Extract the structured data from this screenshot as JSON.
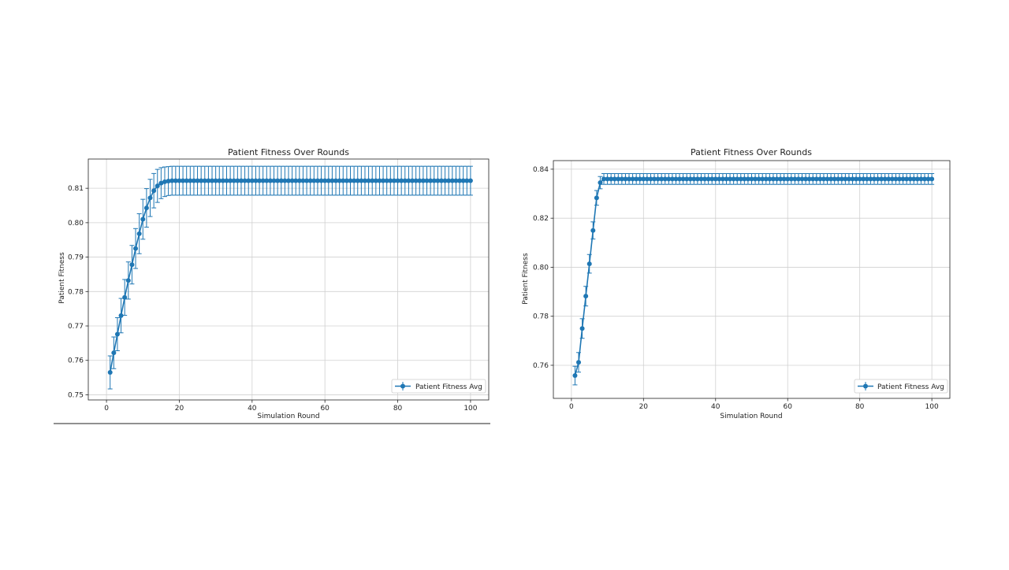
{
  "chart_data": [
    {
      "type": "line",
      "title": "Patient Fitness Over Rounds",
      "xlabel": "Simulation Round",
      "ylabel": "Patient Fitness",
      "xlim": [
        -5,
        105
      ],
      "ylim": [
        0.7485,
        0.8185
      ],
      "xticks": [
        0,
        20,
        40,
        60,
        80,
        100
      ],
      "yticks": [
        0.75,
        0.76,
        0.77,
        0.78,
        0.79,
        0.8,
        0.81
      ],
      "ytick_labels": [
        "0.75",
        "0.76",
        "0.77",
        "0.78",
        "0.79",
        "0.80",
        "0.81"
      ],
      "grid": true,
      "legend": "lower-right",
      "color": "#1f77b4",
      "series": [
        {
          "name": "Patient Fitness Avg",
          "x_start": 1,
          "values": [
            0.7565,
            0.7622,
            0.7676,
            0.773,
            0.7783,
            0.7832,
            0.7878,
            0.7925,
            0.7968,
            0.801,
            0.8043,
            0.8072,
            0.8093,
            0.8107,
            0.8115,
            0.8119,
            0.8121,
            0.8122
          ],
          "errors": [
            0.0048,
            0.0046,
            0.0048,
            0.005,
            0.0052,
            0.0054,
            0.0056,
            0.0058,
            0.0058,
            0.0058,
            0.0056,
            0.0054,
            0.005,
            0.0048,
            0.0045,
            0.0043,
            0.0042,
            0.0042
          ],
          "plateau_value": 0.8122,
          "plateau_error": 0.0042,
          "n_points": 100
        }
      ]
    },
    {
      "type": "line",
      "title": "Patient Fitness Over Rounds",
      "xlabel": "Simulation Round",
      "ylabel": "Patient Fitness",
      "xlim": [
        -5,
        105
      ],
      "ylim": [
        0.7465,
        0.8435
      ],
      "xticks": [
        0,
        20,
        40,
        60,
        80,
        100
      ],
      "yticks": [
        0.76,
        0.78,
        0.8,
        0.82,
        0.84
      ],
      "ytick_labels": [
        "0.76",
        "0.78",
        "0.80",
        "0.82",
        "0.84"
      ],
      "grid": true,
      "legend": "lower-right",
      "color": "#1f77b4",
      "series": [
        {
          "name": "Patient Fitness Avg",
          "x_start": 1,
          "values": [
            0.7558,
            0.7612,
            0.775,
            0.7882,
            0.8014,
            0.815,
            0.8283,
            0.8345,
            0.836
          ],
          "errors": [
            0.0038,
            0.004,
            0.004,
            0.004,
            0.0038,
            0.0035,
            0.003,
            0.0025,
            0.0022
          ],
          "plateau_value": 0.836,
          "plateau_error": 0.0022,
          "n_points": 100
        }
      ]
    }
  ]
}
